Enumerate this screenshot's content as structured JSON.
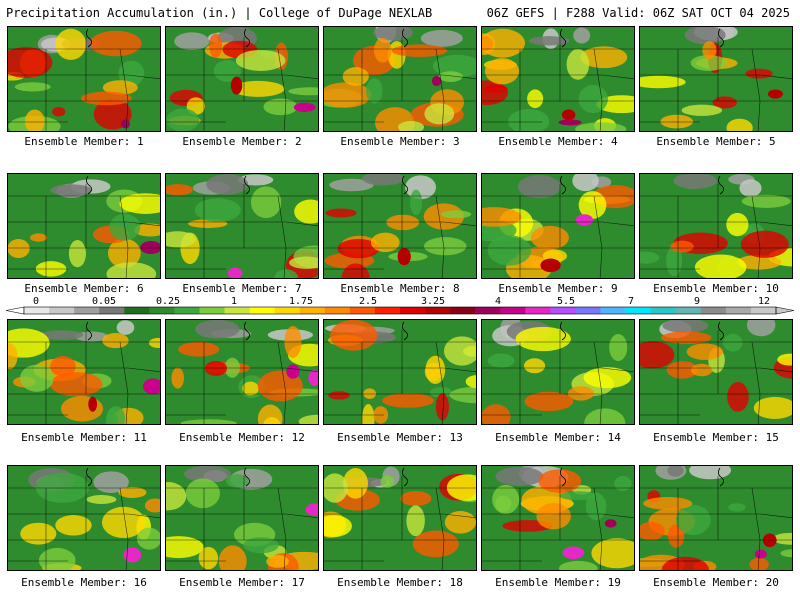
{
  "header": {
    "left_title": "Precipitation Accumulation (in.) | College of DuPage NEXLAB",
    "right_title": "06Z GEFS | F288 Valid: 06Z SAT OCT 04 2025"
  },
  "panels": [
    {
      "label": "Ensemble Member: 1"
    },
    {
      "label": "Ensemble Member: 2"
    },
    {
      "label": "Ensemble Member: 3"
    },
    {
      "label": "Ensemble Member: 4"
    },
    {
      "label": "Ensemble Member: 5"
    },
    {
      "label": "Ensemble Member: 6"
    },
    {
      "label": "Ensemble Member: 7"
    },
    {
      "label": "Ensemble Member: 8"
    },
    {
      "label": "Ensemble Member: 9"
    },
    {
      "label": "Ensemble Member: 10"
    },
    {
      "label": "Ensemble Member: 11"
    },
    {
      "label": "Ensemble Member: 12"
    },
    {
      "label": "Ensemble Member: 13"
    },
    {
      "label": "Ensemble Member: 14"
    },
    {
      "label": "Ensemble Member: 15"
    },
    {
      "label": "Ensemble Member: 16"
    },
    {
      "label": "Ensemble Member: 17"
    },
    {
      "label": "Ensemble Member: 18"
    },
    {
      "label": "Ensemble Member: 19"
    },
    {
      "label": "Ensemble Member: 20"
    }
  ],
  "colorbar": {
    "labels": [
      "0",
      "0.05",
      "0.25",
      "1",
      "1.75",
      "2.5",
      "3.25",
      "4",
      "5.5",
      "7",
      "9",
      "12"
    ],
    "colors": [
      "#e8e8e8",
      "#c8c8c8",
      "#a0a0a0",
      "#787878",
      "#1f6f1f",
      "#2e8b2e",
      "#3da83d",
      "#7ccd3c",
      "#c8e63c",
      "#ffff00",
      "#ffd800",
      "#ffb000",
      "#ff8c00",
      "#ff5a00",
      "#ff2000",
      "#e00000",
      "#b40000",
      "#8b0014",
      "#a0005a",
      "#c8008c",
      "#e628c8",
      "#b450ff",
      "#7878ff",
      "#50b4ff",
      "#00e6ff",
      "#28c8c8",
      "#64b4b4",
      "#8c8c8c",
      "#aaaaaa",
      "#c8c8c8"
    ]
  }
}
